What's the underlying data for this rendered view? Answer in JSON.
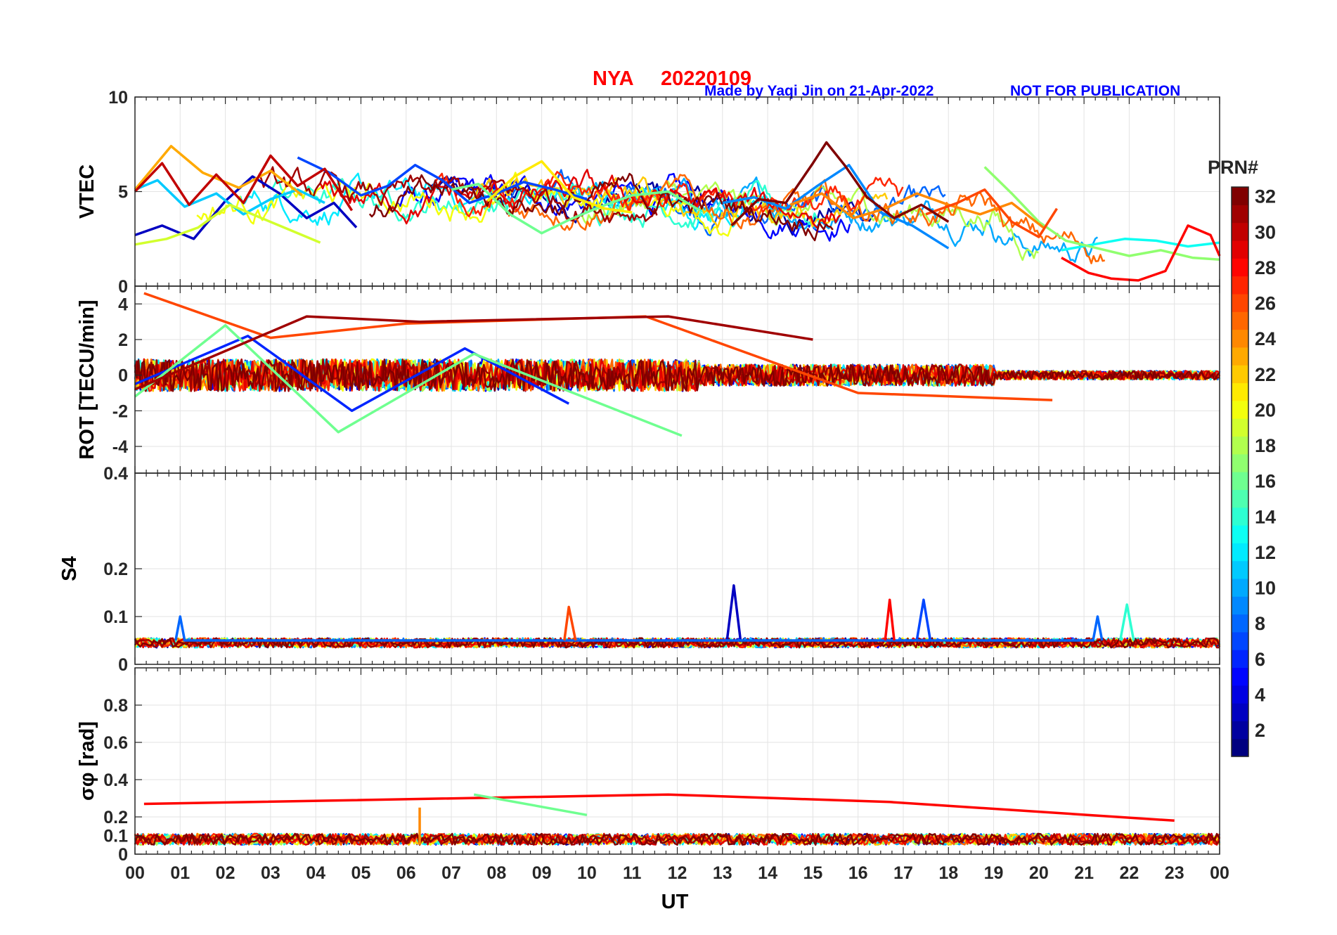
{
  "header": {
    "station": "NYA",
    "date": "20220109",
    "credit": "Made by Yaqi Jin on 21-Apr-2022",
    "notice": "NOT FOR PUBLICATION"
  },
  "chart_data": [
    {
      "type": "line",
      "panel": "vtec",
      "ylabel": "VTEC",
      "ylim": [
        0,
        10
      ],
      "yticks": [
        0,
        5,
        10
      ],
      "ytick_labels": [
        "0",
        "5",
        "10"
      ],
      "xlim": [
        0,
        24
      ],
      "grid": true,
      "series": [
        {
          "name": "PRN 3",
          "prn": 3,
          "x": [
            0,
            0.6,
            1.3,
            2.0,
            2.6,
            3.2,
            3.8,
            4.4,
            4.9
          ],
          "values": [
            2.7,
            3.2,
            2.5,
            4.5,
            5.8,
            4.9,
            3.6,
            4.4,
            3.1
          ]
        },
        {
          "name": "PRN 7",
          "prn": 7,
          "x": [
            3.6,
            4.3,
            5.0,
            5.6,
            6.2,
            6.8,
            7.4,
            8.0,
            8.6,
            9.3,
            10.0
          ],
          "values": [
            6.8,
            6.0,
            4.8,
            5.3,
            6.4,
            5.6,
            4.4,
            4.9,
            5.5,
            5.1,
            4.6
          ]
        },
        {
          "name": "PRN 9",
          "prn": 9,
          "x": [
            13.0,
            13.7,
            14.4,
            15.1,
            15.8,
            16.5,
            17.2,
            18.0
          ],
          "values": [
            4.4,
            4.7,
            4.1,
            5.3,
            6.4,
            3.9,
            3.2,
            2.0
          ]
        },
        {
          "name": "PRN 11",
          "prn": 11,
          "x": [
            0,
            0.5,
            1.1,
            1.8,
            2.4,
            3.0,
            3.6,
            4.2
          ],
          "values": [
            5.1,
            5.6,
            4.2,
            4.9,
            3.8,
            4.6,
            5.1,
            4.4
          ]
        },
        {
          "name": "PRN 13",
          "prn": 13,
          "x": [
            20.5,
            21.2,
            21.9,
            22.6,
            23.3,
            24.0
          ],
          "values": [
            1.9,
            2.2,
            2.5,
            2.4,
            2.1,
            2.3
          ]
        },
        {
          "name": "PRN 16",
          "prn": 16,
          "x": [
            7.0,
            7.6,
            8.3,
            9.0,
            9.6,
            10.3,
            11.0,
            11.8,
            12.5
          ],
          "values": [
            5.1,
            5.4,
            3.8,
            2.8,
            3.5,
            4.2,
            4.8,
            5.0,
            4.0
          ]
        },
        {
          "name": "PRN 17",
          "prn": 17,
          "x": [
            18.8,
            19.4,
            20.0,
            20.6,
            21.3,
            22.0,
            22.7,
            23.4,
            24.0
          ],
          "values": [
            6.3,
            4.9,
            3.4,
            2.4,
            2.0,
            1.6,
            1.9,
            1.5,
            1.4
          ]
        },
        {
          "name": "PRN 19",
          "prn": 19,
          "x": [
            0,
            0.7,
            1.4,
            2.1,
            2.8,
            3.5,
            4.1
          ],
          "values": [
            2.2,
            2.5,
            3.1,
            4.3,
            3.6,
            2.9,
            2.3
          ]
        },
        {
          "name": "PRN 21",
          "prn": 21,
          "x": [
            7.8,
            8.4,
            9.0,
            9.7,
            10.4,
            11.0
          ],
          "values": [
            4.5,
            5.8,
            6.6,
            4.7,
            4.1,
            3.9
          ]
        },
        {
          "name": "PRN 23",
          "prn": 23,
          "x": [
            0,
            0.8,
            1.5,
            2.3,
            3.0,
            3.7
          ],
          "values": [
            5.1,
            7.4,
            6.0,
            5.2,
            6.1,
            4.8
          ]
        },
        {
          "name": "PRN 24",
          "prn": 24,
          "x": [
            14.5,
            15.2,
            15.9,
            16.6,
            17.3,
            18.0,
            18.7,
            19.4,
            20.1
          ],
          "values": [
            4.3,
            4.9,
            3.6,
            4.1,
            4.9,
            4.3,
            3.8,
            4.4,
            3.1
          ]
        },
        {
          "name": "PRN 26",
          "prn": 26,
          "x": [
            17.5,
            18.2,
            18.8,
            19.4,
            20.0,
            20.4
          ],
          "values": [
            3.8,
            4.4,
            5.1,
            3.4,
            2.6,
            4.1
          ]
        },
        {
          "name": "PRN 28",
          "prn": 28,
          "x": [
            20.5,
            21.1,
            21.6,
            22.2,
            22.8,
            23.3,
            23.8,
            24.0
          ],
          "values": [
            1.5,
            0.7,
            0.4,
            0.3,
            0.8,
            3.2,
            2.7,
            1.6
          ]
        },
        {
          "name": "PRN 30",
          "prn": 30,
          "x": [
            0,
            0.6,
            1.2,
            1.8,
            2.4,
            3.0,
            3.6,
            4.2,
            4.8
          ],
          "values": [
            5.0,
            6.5,
            4.3,
            5.9,
            4.4,
            6.9,
            5.3,
            6.2,
            4.0
          ]
        },
        {
          "name": "PRN 32",
          "prn": 32,
          "x": [
            13.2,
            13.8,
            14.4,
            15.0,
            15.3,
            15.7,
            16.2,
            16.8,
            17.4,
            18.0
          ],
          "values": [
            3.2,
            4.6,
            4.4,
            6.5,
            7.6,
            6.4,
            4.7,
            3.6,
            4.3,
            3.4
          ]
        }
      ]
    },
    {
      "type": "line",
      "panel": "rot",
      "ylabel": "ROT [TECU/min]",
      "ylim": [
        -5.5,
        5
      ],
      "yticks": [
        -4,
        -2,
        0,
        2,
        4
      ],
      "ytick_labels": [
        "-4",
        "-2",
        "0",
        "2",
        "4"
      ],
      "xlim": [
        0,
        24
      ],
      "grid": true,
      "series": [
        {
          "name": "PRN 6",
          "prn": 6,
          "x": [
            0,
            2.5,
            4.8,
            7.3,
            9.6
          ],
          "values": [
            -0.5,
            2.2,
            -2.0,
            1.5,
            -1.6
          ]
        },
        {
          "name": "PRN 16",
          "prn": 16,
          "x": [
            0,
            2.0,
            4.5,
            7.5,
            11.0,
            12.1
          ],
          "values": [
            -1.2,
            2.8,
            -3.2,
            1.2,
            -2.3,
            -3.4
          ]
        },
        {
          "name": "PRN 26",
          "prn": 26,
          "x": [
            0.2,
            3.0,
            6.0,
            11.3,
            16.0,
            20.3
          ],
          "values": [
            4.6,
            2.1,
            2.9,
            3.3,
            -1.0,
            -1.4
          ]
        },
        {
          "name": "PRN 31",
          "prn": 31,
          "x": [
            0,
            3.8,
            6.3,
            11.8,
            15.0
          ],
          "values": [
            -0.8,
            3.3,
            3.0,
            3.3,
            2.0
          ]
        }
      ]
    },
    {
      "type": "line",
      "panel": "s4",
      "ylabel": "S4",
      "ylim": [
        0,
        0.4
      ],
      "yticks": [
        0,
        0.1,
        0.2,
        0.4
      ],
      "ytick_labels": [
        "0",
        "0.1",
        "0.2",
        "0.4"
      ],
      "xlim": [
        0,
        24
      ],
      "grid": true,
      "series": [
        {
          "name": "PRN 3",
          "prn": 3,
          "x": [
            13.1,
            13.25,
            13.4
          ],
          "values": [
            0.05,
            0.165,
            0.05
          ]
        },
        {
          "name": "PRN 7",
          "prn": 7,
          "x": [
            17.3,
            17.45,
            17.6
          ],
          "values": [
            0.05,
            0.135,
            0.05
          ]
        },
        {
          "name": "PRN 8",
          "prn": 8,
          "x": [
            0.9,
            1.0,
            1.1,
            21.2,
            21.3,
            21.4
          ],
          "values": [
            0.05,
            0.1,
            0.05,
            0.05,
            0.1,
            0.05
          ]
        },
        {
          "name": "PRN 14",
          "prn": 14,
          "x": [
            21.8,
            21.95,
            22.1
          ],
          "values": [
            0.05,
            0.125,
            0.05
          ]
        },
        {
          "name": "PRN 26",
          "prn": 26,
          "x": [
            9.5,
            9.6,
            9.75
          ],
          "values": [
            0.05,
            0.12,
            0.05
          ]
        },
        {
          "name": "PRN 28",
          "prn": 28,
          "x": [
            16.6,
            16.7,
            16.8
          ],
          "values": [
            0.05,
            0.135,
            0.05
          ]
        }
      ]
    },
    {
      "type": "line",
      "panel": "sigma_phi",
      "ylabel": "σφ [rad]",
      "ylim": [
        0,
        1
      ],
      "yticks": [
        0,
        0.1,
        0.2,
        0.4,
        0.6,
        0.8
      ],
      "ytick_labels": [
        "0",
        "0.1",
        "0.2",
        "0.4",
        "0.6",
        "0.8"
      ],
      "xlim": [
        0,
        24
      ],
      "xticks": [
        0,
        1,
        2,
        3,
        4,
        5,
        6,
        7,
        8,
        9,
        10,
        11,
        12,
        13,
        14,
        15,
        16,
        17,
        18,
        19,
        20,
        21,
        22,
        23,
        24
      ],
      "xtick_labels": [
        "00",
        "01",
        "02",
        "03",
        "04",
        "05",
        "06",
        "07",
        "08",
        "09",
        "10",
        "11",
        "12",
        "13",
        "14",
        "15",
        "16",
        "17",
        "18",
        "19",
        "20",
        "21",
        "22",
        "23",
        "00"
      ],
      "xlabel": "UT",
      "grid": true,
      "series": [
        {
          "name": "PRN 28",
          "prn": 28,
          "x": [
            0.2,
            11.8,
            16.7,
            23.0
          ],
          "values": [
            0.27,
            0.32,
            0.28,
            0.18
          ]
        },
        {
          "name": "PRN 16",
          "prn": 16,
          "x": [
            7.5,
            10.0
          ],
          "values": [
            0.32,
            0.21
          ]
        },
        {
          "name": "PRN 24",
          "prn": 24,
          "x": [
            6.3
          ],
          "values": [
            0.25
          ]
        }
      ]
    }
  ],
  "colorbar": {
    "title": "PRN#",
    "range": [
      1,
      32
    ],
    "tick_labels": [
      "2",
      "4",
      "6",
      "8",
      "10",
      "12",
      "14",
      "16",
      "18",
      "20",
      "22",
      "24",
      "26",
      "28",
      "30",
      "32"
    ]
  }
}
